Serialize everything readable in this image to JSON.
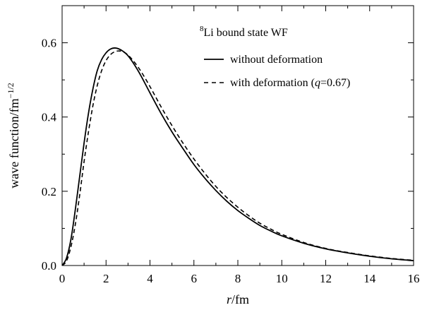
{
  "chart_data": {
    "type": "line",
    "annotation": {
      "superscript": "8",
      "text": "Li bound state WF"
    },
    "xlabel": {
      "italic": "r",
      "rest": "/fm"
    },
    "ylabel": {
      "main": "wave function/fm",
      "exponent": "−1/2"
    },
    "xlim": [
      0,
      16
    ],
    "ylim": [
      0,
      0.7
    ],
    "x_ticks": [
      0,
      2,
      4,
      6,
      8,
      10,
      12,
      14,
      16
    ],
    "x_tick_labels": [
      "0",
      "2",
      "4",
      "6",
      "8",
      "10",
      "12",
      "14",
      "16"
    ],
    "y_ticks": [
      0.0,
      0.2,
      0.4,
      0.6
    ],
    "y_tick_labels": [
      "0.0",
      "0.2",
      "0.4",
      "0.6"
    ],
    "grid": false,
    "legend_position": "upper-right",
    "series": [
      {
        "name": "without deformation",
        "dash": "solid",
        "color": "#000000",
        "x": [
          0,
          0.2,
          0.4,
          0.6,
          0.8,
          1.0,
          1.2,
          1.4,
          1.6,
          1.8,
          2.0,
          2.2,
          2.4,
          2.6,
          2.8,
          3.0,
          3.3,
          3.6,
          4.0,
          4.5,
          5.0,
          5.5,
          6.0,
          6.5,
          7.0,
          7.5,
          8.0,
          8.5,
          9.0,
          9.5,
          10.0,
          11.0,
          12.0,
          13.0,
          14.0,
          15.0,
          16.0
        ],
        "y": [
          0,
          0.02,
          0.07,
          0.15,
          0.24,
          0.33,
          0.41,
          0.475,
          0.525,
          0.555,
          0.573,
          0.583,
          0.586,
          0.583,
          0.576,
          0.565,
          0.54,
          0.51,
          0.465,
          0.41,
          0.36,
          0.315,
          0.272,
          0.235,
          0.202,
          0.173,
          0.148,
          0.127,
          0.108,
          0.093,
          0.08,
          0.06,
          0.045,
          0.034,
          0.025,
          0.018,
          0.013
        ]
      },
      {
        "name": "with deformation (q=0.67)",
        "name_parts": {
          "before": "with deformation (",
          "italic": "q",
          "after": "=0.67)"
        },
        "dash": "dashed",
        "color": "#000000",
        "x": [
          0,
          0.2,
          0.4,
          0.6,
          0.8,
          1.0,
          1.2,
          1.4,
          1.6,
          1.8,
          2.0,
          2.2,
          2.4,
          2.6,
          2.8,
          3.0,
          3.3,
          3.6,
          4.0,
          4.5,
          5.0,
          5.5,
          6.0,
          6.5,
          7.0,
          7.5,
          8.0,
          8.5,
          9.0,
          9.5,
          10.0,
          11.0,
          12.0,
          13.0,
          14.0,
          15.0,
          16.0
        ],
        "y": [
          0,
          0.012,
          0.05,
          0.11,
          0.19,
          0.28,
          0.36,
          0.43,
          0.485,
          0.525,
          0.552,
          0.568,
          0.576,
          0.578,
          0.575,
          0.567,
          0.547,
          0.522,
          0.482,
          0.428,
          0.377,
          0.33,
          0.287,
          0.248,
          0.213,
          0.183,
          0.157,
          0.134,
          0.114,
          0.098,
          0.084,
          0.062,
          0.046,
          0.035,
          0.026,
          0.019,
          0.014
        ]
      }
    ]
  }
}
